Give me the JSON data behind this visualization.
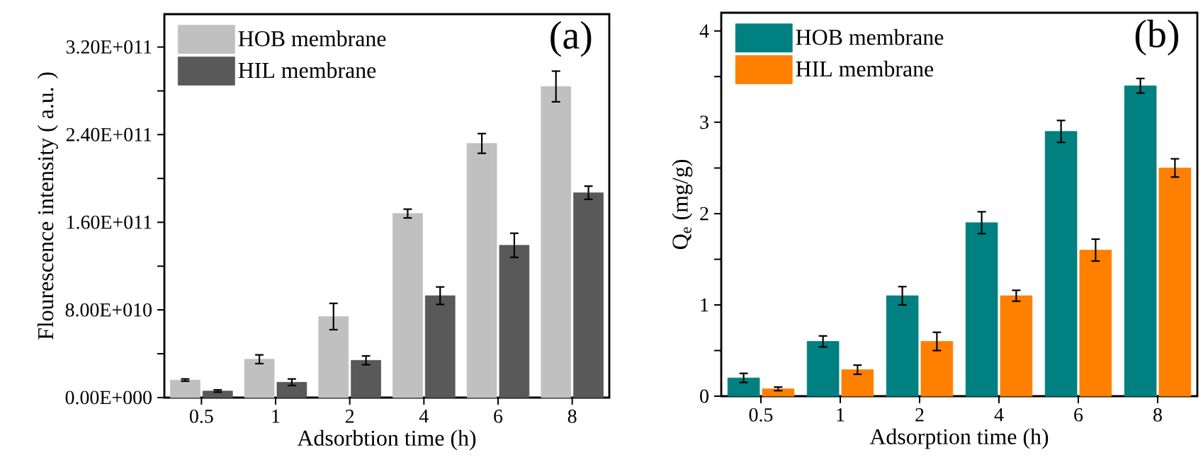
{
  "chart_data": [
    {
      "type": "bar",
      "xlabel": "Adsorbtion time (h)",
      "ylabel": "Flourescence intensity ( a.u. )",
      "categories": [
        "0.5",
        "1",
        "2",
        "4",
        "6",
        "8"
      ],
      "series": [
        {
          "name": "HOB membrane",
          "color": "#c0c0c0",
          "values": [
            16000000000.0,
            35000000000.0,
            74000000000.0,
            168000000000.0,
            232000000000.0,
            284000000000.0
          ],
          "errors": [
            1000000000.0,
            4000000000.0,
            12000000000.0,
            4000000000.0,
            9000000000.0,
            14000000000.0
          ]
        },
        {
          "name": "HIL membrane",
          "color": "#595959",
          "values": [
            6000000000.0,
            14000000000.0,
            34000000000.0,
            93000000000.0,
            139000000000.0,
            187000000000.0
          ],
          "errors": [
            1000000000.0,
            3000000000.0,
            4000000000.0,
            8000000000.0,
            11000000000.0,
            6000000000.0
          ]
        }
      ],
      "ylim": [
        0,
        350000000000.0
      ],
      "yticks": [
        {
          "value": 0,
          "label": "0.00E+000"
        },
        {
          "value": 40000000000.0,
          "label": null
        },
        {
          "value": 80000000000.0,
          "label": "8.00E+010"
        },
        {
          "value": 120000000000.0,
          "label": null
        },
        {
          "value": 160000000000.0,
          "label": "1.60E+011"
        },
        {
          "value": 200000000000.0,
          "label": null
        },
        {
          "value": 240000000000.0,
          "label": "2.40E+011"
        },
        {
          "value": 280000000000.0,
          "label": null
        },
        {
          "value": 320000000000.0,
          "label": "3.20E+011"
        }
      ],
      "legend": "top left",
      "annotations": [
        "(a)"
      ]
    },
    {
      "type": "bar",
      "xlabel": "Adsorption time (h)",
      "ylabel": "Q$_{e}$ (mg/g)",
      "categories": [
        "0.5",
        "1",
        "2",
        "4",
        "6",
        "8"
      ],
      "series": [
        {
          "name": "HOB membrane",
          "color": "#008080",
          "values": [
            0.2,
            0.6,
            1.1,
            1.9,
            2.9,
            3.4
          ],
          "errors": [
            0.05,
            0.06,
            0.1,
            0.12,
            0.12,
            0.08
          ]
        },
        {
          "name": "HIL membrane",
          "color": "#ff7f00",
          "values": [
            0.08,
            0.29,
            0.6,
            1.1,
            1.6,
            2.5
          ],
          "errors": [
            0.02,
            0.05,
            0.1,
            0.06,
            0.12,
            0.1
          ]
        }
      ],
      "ylim": [
        0,
        4.2
      ],
      "yticks": [
        0,
        {
          "value": 0.5,
          "label": null
        },
        1,
        {
          "value": 1.5,
          "label": null
        },
        2,
        {
          "value": 2.5,
          "label": null
        },
        3,
        {
          "value": 3.5,
          "label": null
        },
        4
      ],
      "legend": "top left",
      "annotations": [
        "(b)"
      ]
    }
  ]
}
